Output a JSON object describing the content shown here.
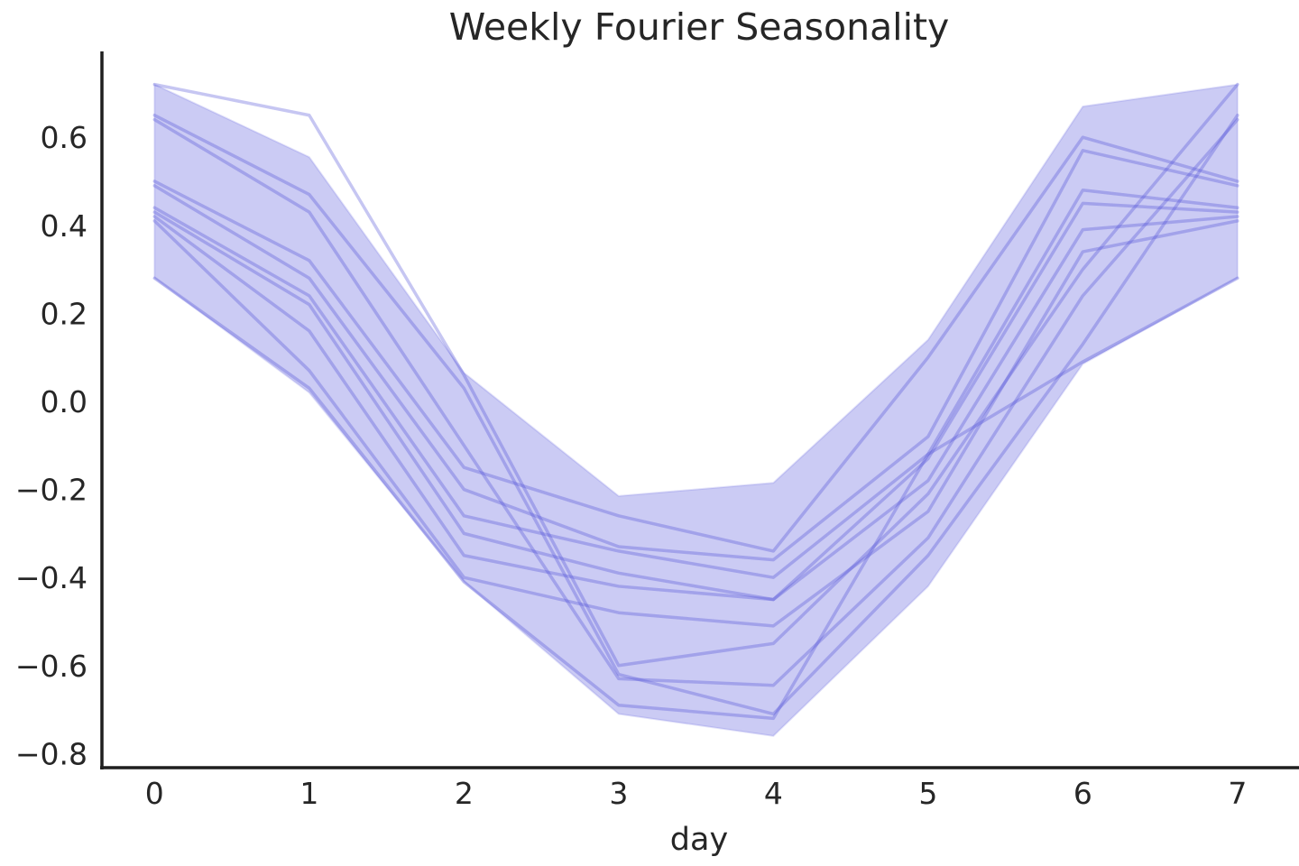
{
  "chart_data": {
    "type": "line",
    "title": "Weekly Fourier Seasonality",
    "xlabel": "day",
    "ylabel": "",
    "legend": null,
    "grid": false,
    "x": [
      0,
      1,
      2,
      3,
      4,
      5,
      6,
      7
    ],
    "xticks": [
      "0",
      "1",
      "2",
      "3",
      "4",
      "5",
      "6",
      "7"
    ],
    "yticks": [
      0.6,
      0.4,
      0.2,
      0.0,
      -0.2,
      -0.4,
      -0.6,
      -0.8
    ],
    "ytick_labels": [
      "0.6",
      "0.4",
      "0.2",
      "0.0",
      "−0.2",
      "−0.4",
      "−0.6",
      "−0.8"
    ],
    "xlim": [
      -0.34,
      7.38
    ],
    "ylim": [
      -0.832,
      0.795
    ],
    "band": {
      "upper": [
        0.72,
        0.555,
        0.065,
        -0.215,
        -0.185,
        0.14,
        0.67,
        0.72
      ],
      "lower": [
        0.28,
        0.02,
        -0.41,
        -0.71,
        -0.76,
        -0.42,
        0.085,
        0.28
      ]
    },
    "samples": [
      [
        0.72,
        0.65,
        0.06,
        -0.6,
        -0.55,
        -0.21,
        0.3,
        0.72
      ],
      [
        0.65,
        0.47,
        0.03,
        -0.62,
        -0.71,
        -0.35,
        0.13,
        0.65
      ],
      [
        0.64,
        0.43,
        -0.1,
        -0.63,
        -0.645,
        -0.31,
        0.24,
        0.64
      ],
      [
        0.5,
        0.32,
        -0.15,
        -0.26,
        -0.34,
        0.1,
        0.6,
        0.5
      ],
      [
        0.49,
        0.28,
        -0.2,
        -0.33,
        -0.36,
        -0.08,
        0.57,
        0.49
      ],
      [
        0.44,
        0.24,
        -0.26,
        -0.34,
        -0.4,
        -0.12,
        0.48,
        0.44
      ],
      [
        0.43,
        0.22,
        -0.3,
        -0.39,
        -0.45,
        -0.13,
        0.45,
        0.43
      ],
      [
        0.42,
        0.16,
        -0.35,
        -0.42,
        -0.45,
        -0.18,
        0.39,
        0.42
      ],
      [
        0.41,
        0.07,
        -0.4,
        -0.48,
        -0.51,
        -0.25,
        0.34,
        0.41
      ],
      [
        0.28,
        0.03,
        -0.41,
        -0.69,
        -0.72,
        -0.12,
        0.09,
        0.28
      ]
    ],
    "colors": {
      "fill": "rgba(92,92,221,0.32)",
      "fill_edge": "rgba(92,92,221,0.18)",
      "line": "rgba(78,78,214,0.32)",
      "axis": "#1f1f1f",
      "text": "#262626"
    }
  }
}
